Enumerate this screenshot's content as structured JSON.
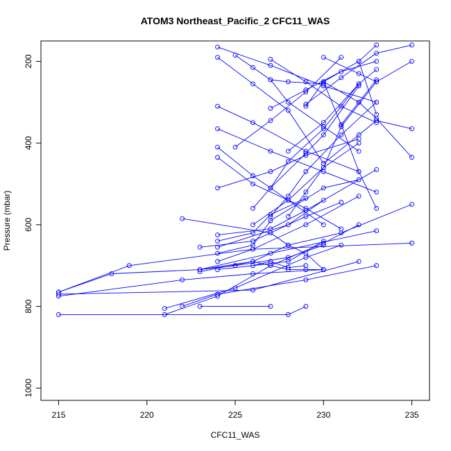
{
  "chart_data": {
    "type": "line",
    "title": "ATOM3 Northeast_Pacific_2 CFC11_WAS",
    "xlabel": "CFC11_WAS",
    "ylabel": "Pressure (mbar)",
    "xlim": [
      214,
      236
    ],
    "ylim": [
      1030,
      150
    ],
    "y_reversed": true,
    "xticks": [
      215,
      220,
      225,
      230,
      235
    ],
    "yticks": [
      200,
      400,
      600,
      800,
      1000
    ],
    "grid": false,
    "legend": "none",
    "marker": "open-circle",
    "colors": {
      "series": "#0000ff",
      "axis": "#000000"
    },
    "series": [
      {
        "x": [
          215,
          226,
          232
        ],
        "y": [
          770,
          760,
          690
        ]
      },
      {
        "x": [
          215,
          228,
          229
        ],
        "y": [
          820,
          820,
          800
        ]
      },
      {
        "x": [
          215,
          219,
          226,
          235
        ],
        "y": [
          765,
          700,
          660,
          645
        ]
      },
      {
        "x": [
          215,
          218,
          223,
          227,
          233
        ],
        "y": [
          765,
          720,
          710,
          670,
          615
        ]
      },
      {
        "x": [
          215,
          222,
          226,
          230
        ],
        "y": [
          775,
          735,
          720,
          710
        ]
      },
      {
        "x": [
          221,
          225,
          229,
          231
        ],
        "y": [
          805,
          755,
          680,
          650
        ]
      },
      {
        "x": [
          221,
          224,
          227,
          230,
          232
        ],
        "y": [
          820,
          775,
          700,
          645,
          600
        ]
      },
      {
        "x": [
          222,
          224,
          229,
          233
        ],
        "y": [
          800,
          770,
          735,
          700
        ]
      },
      {
        "x": [
          222,
          227,
          228,
          229,
          230
        ],
        "y": [
          585,
          620,
          650,
          670,
          710
        ]
      },
      {
        "x": [
          223,
          227
        ],
        "y": [
          800,
          800
        ]
      },
      {
        "x": [
          223,
          226,
          229,
          231
        ],
        "y": [
          655,
          640,
          580,
          545
        ]
      },
      {
        "x": [
          223,
          225,
          228,
          230
        ],
        "y": [
          710,
          700,
          680,
          650
        ]
      },
      {
        "x": [
          223,
          226,
          228,
          231,
          235
        ],
        "y": [
          715,
          690,
          650,
          620,
          550
        ]
      },
      {
        "x": [
          224,
          227,
          229,
          233
        ],
        "y": [
          625,
          610,
          565,
          465
        ]
      },
      {
        "x": [
          224,
          226,
          227,
          229
        ],
        "y": [
          640,
          620,
          575,
          535
        ]
      },
      {
        "x": [
          224,
          228,
          230
        ],
        "y": [
          655,
          600,
          540
        ]
      },
      {
        "x": [
          224,
          226,
          227,
          230,
          232
        ],
        "y": [
          670,
          650,
          590,
          510,
          490
        ]
      },
      {
        "x": [
          224,
          226,
          229,
          232
        ],
        "y": [
          690,
          660,
          600,
          530
        ]
      },
      {
        "x": [
          224,
          228,
          230
        ],
        "y": [
          710,
          690,
          640
        ]
      },
      {
        "x": [
          224,
          227,
          229,
          232
        ],
        "y": [
          510,
          470,
          430,
          390
        ]
      },
      {
        "x": [
          224,
          226,
          229,
          231
        ],
        "y": [
          435,
          500,
          560,
          610
        ]
      },
      {
        "x": [
          224,
          226,
          228,
          230
        ],
        "y": [
          410,
          480,
          540,
          600
        ]
      },
      {
        "x": [
          224,
          227,
          230,
          233
        ],
        "y": [
          365,
          420,
          470,
          520
        ]
      },
      {
        "x": [
          224,
          226,
          229,
          232
        ],
        "y": [
          310,
          350,
          420,
          470
        ]
      },
      {
        "x": [
          224,
          226,
          228,
          230
        ],
        "y": [
          190,
          255,
          320,
          450
        ]
      },
      {
        "x": [
          224,
          227,
          230,
          233
        ],
        "y": [
          165,
          210,
          260,
          300
        ]
      },
      {
        "x": [
          225,
          226,
          227,
          228,
          230
        ],
        "y": [
          185,
          215,
          245,
          250,
          255
        ]
      },
      {
        "x": [
          225,
          227,
          229,
          231
        ],
        "y": [
          410,
          345,
          275,
          190
        ]
      },
      {
        "x": [
          226,
          227,
          229,
          230,
          232
        ],
        "y": [
          560,
          510,
          425,
          380,
          260
        ]
      },
      {
        "x": [
          226,
          228,
          230,
          231,
          233
        ],
        "y": [
          600,
          540,
          460,
          360,
          250
        ]
      },
      {
        "x": [
          227,
          228,
          229,
          231,
          233
        ],
        "y": [
          580,
          530,
          470,
          380,
          300
        ]
      },
      {
        "x": [
          227,
          228,
          230,
          232
        ],
        "y": [
          510,
          445,
          365,
          255
        ]
      },
      {
        "x": [
          227,
          229,
          231,
          233
        ],
        "y": [
          315,
          270,
          225,
          200
        ]
      },
      {
        "x": [
          227,
          228,
          230,
          232
        ],
        "y": [
          245,
          300,
          360,
          420
        ]
      },
      {
        "x": [
          227,
          229,
          231,
          233
        ],
        "y": [
          195,
          250,
          310,
          350
        ]
      },
      {
        "x": [
          228,
          230,
          232,
          233
        ],
        "y": [
          420,
          350,
          255,
          220
        ]
      },
      {
        "x": [
          228,
          229,
          230,
          232
        ],
        "y": [
          580,
          520,
          460,
          400
        ]
      },
      {
        "x": [
          229,
          230,
          232,
          233
        ],
        "y": [
          310,
          250,
          200,
          160
        ]
      },
      {
        "x": [
          229,
          231,
          233,
          235
        ],
        "y": [
          305,
          240,
          180,
          160
        ]
      },
      {
        "x": [
          230,
          232,
          233,
          235
        ],
        "y": [
          450,
          380,
          345,
          365
        ]
      },
      {
        "x": [
          230,
          232,
          233,
          235
        ],
        "y": [
          250,
          300,
          340,
          435
        ]
      },
      {
        "x": [
          230,
          231,
          232,
          233
        ],
        "y": [
          250,
          355,
          470,
          560
        ]
      },
      {
        "x": [
          230,
          232,
          233,
          235
        ],
        "y": [
          190,
          230,
          250,
          200
        ]
      },
      {
        "x": [
          231,
          232,
          233
        ],
        "y": [
          355,
          300,
          245
        ]
      },
      {
        "x": [
          232,
          233
        ],
        "y": [
          200,
          330
        ]
      },
      {
        "x": [
          226,
          227,
          228,
          229
        ],
        "y": [
          700,
          690,
          705,
          700
        ]
      },
      {
        "x": [
          223,
          226,
          228,
          229,
          230
        ],
        "y": [
          710,
          690,
          710,
          710,
          710
        ]
      }
    ]
  }
}
